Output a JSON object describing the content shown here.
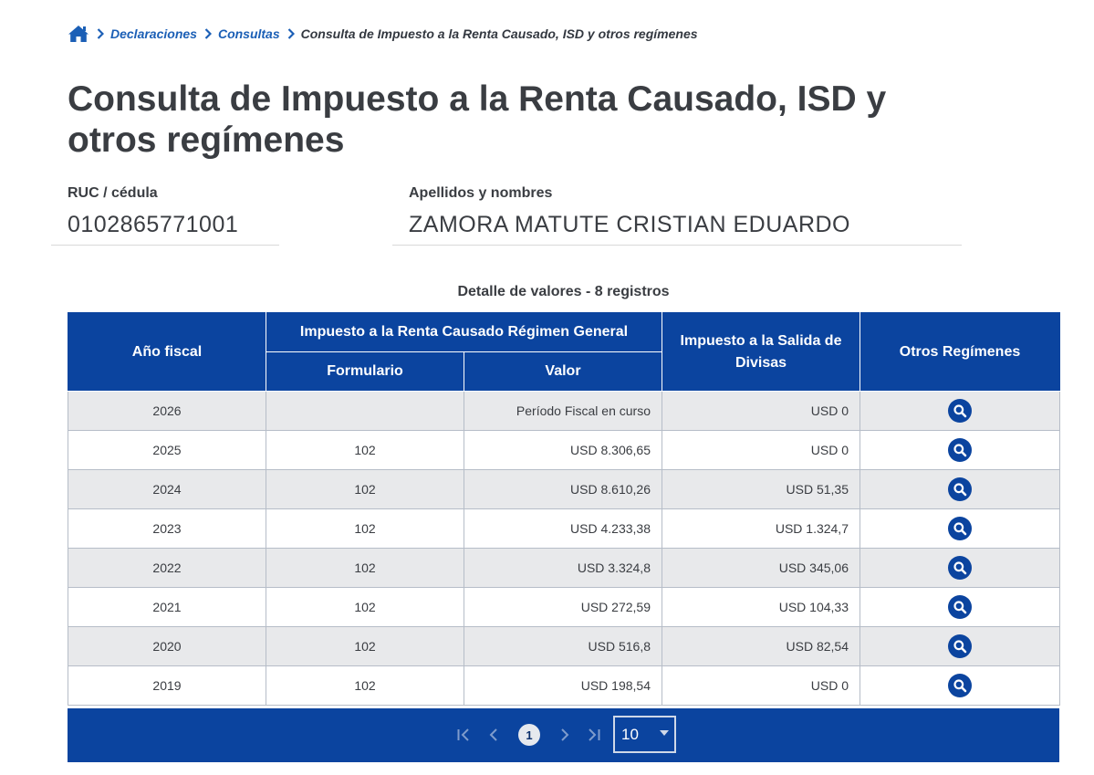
{
  "breadcrumb": {
    "home_icon": "home-icon",
    "items": [
      "Declaraciones",
      "Consultas"
    ],
    "current": "Consulta de Impuesto a la Renta Causado, ISD y otros regímenes"
  },
  "title": "Consulta de Impuesto a la Renta Causado, ISD y otros regímenes",
  "ruc": {
    "label": "RUC / cédula",
    "value": "0102865771001"
  },
  "nombre": {
    "label": "Apellidos y nombres",
    "value": "ZAMORA MATUTE CRISTIAN EDUARDO"
  },
  "table": {
    "caption": "Detalle de valores - 8 registros",
    "headers": {
      "anio": "Año fiscal",
      "renta_group": "Impuesto a la Renta Causado Régimen General",
      "formulario": "Formulario",
      "valor": "Valor",
      "isd": "Impuesto a la Salida de Divisas",
      "otros": "Otros Regímenes"
    },
    "rows": [
      {
        "anio": "2026",
        "formulario": "",
        "valor": "Período Fiscal en curso",
        "isd": "USD 0",
        "action_icon": "search-icon"
      },
      {
        "anio": "2025",
        "formulario": "102",
        "valor": "USD 8.306,65",
        "isd": "USD 0",
        "action_icon": "search-icon"
      },
      {
        "anio": "2024",
        "formulario": "102",
        "valor": "USD 8.610,26",
        "isd": "USD 51,35",
        "action_icon": "search-icon"
      },
      {
        "anio": "2023",
        "formulario": "102",
        "valor": "USD 4.233,38",
        "isd": "USD 1.324,7",
        "action_icon": "search-icon"
      },
      {
        "anio": "2022",
        "formulario": "102",
        "valor": "USD 3.324,8",
        "isd": "USD 345,06",
        "action_icon": "search-icon"
      },
      {
        "anio": "2021",
        "formulario": "102",
        "valor": "USD 272,59",
        "isd": "USD 104,33",
        "action_icon": "search-icon"
      },
      {
        "anio": "2020",
        "formulario": "102",
        "valor": "USD 516,8",
        "isd": "USD 82,54",
        "action_icon": "search-icon"
      },
      {
        "anio": "2019",
        "formulario": "102",
        "valor": "USD 198,54",
        "isd": "USD 0",
        "action_icon": "search-icon"
      }
    ]
  },
  "pagination": {
    "current_page": "1",
    "page_size": "10",
    "icons": [
      "first-page-icon",
      "prev-page-icon",
      "next-page-icon",
      "last-page-icon",
      "dropdown-arrow-icon"
    ]
  },
  "colors": {
    "brand_blue": "#0b449f",
    "link_blue": "#1b5fb6",
    "row_alt": "#e8e9eb",
    "text": "#3a3d42"
  }
}
